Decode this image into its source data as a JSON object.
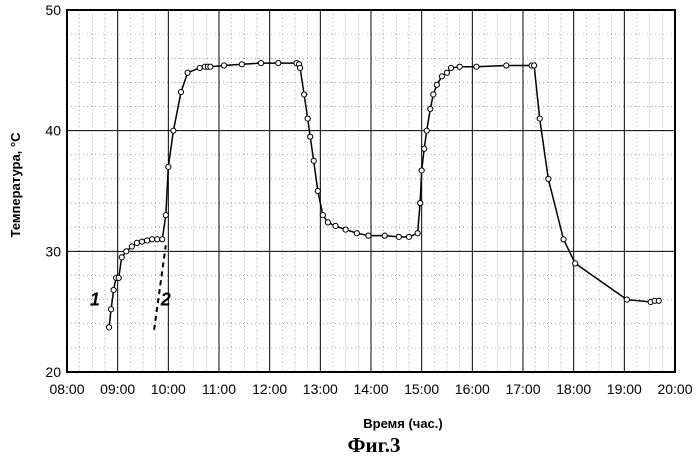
{
  "chart_data": {
    "type": "scatter",
    "title": "",
    "caption": "Фиг.3",
    "xlabel": "Время (час.)",
    "ylabel": "Температура, °С",
    "xlim": [
      8.0,
      20.0
    ],
    "ylim": [
      20,
      50
    ],
    "x_ticks": [
      "08:00",
      "09:00",
      "10:00",
      "11:00",
      "12:00",
      "13:00",
      "14:00",
      "15:00",
      "16:00",
      "17:00",
      "18:00",
      "19:00",
      "20:00"
    ],
    "y_ticks": [
      "20",
      "30",
      "40",
      "50"
    ],
    "grid": true,
    "annotations": [
      {
        "text": "1",
        "x": 8.55,
        "y": 25.5
      },
      {
        "text": "2",
        "x": 9.95,
        "y": 25.5
      }
    ],
    "series": [
      {
        "name": "",
        "style": "line-markers",
        "x": [
          8.83,
          8.87,
          8.92,
          8.97,
          9.02,
          9.08,
          9.17,
          9.28,
          9.38,
          9.48,
          9.58,
          9.68,
          9.78,
          9.88,
          9.95,
          10.0,
          10.1,
          10.25,
          10.38,
          10.62,
          10.72,
          10.78,
          10.83,
          11.1,
          11.45,
          11.83,
          12.17,
          12.53,
          12.58,
          12.6,
          12.68,
          12.75,
          12.8,
          12.87,
          12.95,
          13.05,
          13.15,
          13.3,
          13.5,
          13.72,
          13.95,
          14.27,
          14.55,
          14.75,
          14.92,
          14.97,
          15.0,
          15.05,
          15.1,
          15.17,
          15.23,
          15.3,
          15.4,
          15.5,
          15.58,
          15.75,
          16.08,
          16.67,
          17.17,
          17.22,
          17.33,
          17.5,
          17.8,
          18.03,
          19.05,
          19.52,
          19.6,
          19.68
        ],
        "y": [
          23.7,
          25.2,
          26.8,
          27.8,
          27.8,
          29.5,
          30.0,
          30.4,
          30.7,
          30.8,
          30.9,
          31.0,
          31.0,
          31.0,
          33.0,
          37.0,
          40.0,
          43.2,
          44.8,
          45.2,
          45.3,
          45.3,
          45.3,
          45.4,
          45.5,
          45.6,
          45.6,
          45.6,
          45.5,
          45.2,
          43.0,
          41.0,
          39.5,
          37.5,
          35.0,
          33.0,
          32.4,
          32.1,
          31.8,
          31.5,
          31.3,
          31.3,
          31.2,
          31.2,
          31.5,
          34.0,
          36.7,
          38.5,
          40.0,
          41.8,
          43.0,
          43.8,
          44.5,
          44.8,
          45.2,
          45.3,
          45.3,
          45.4,
          45.4,
          45.4,
          41.0,
          36.0,
          31.0,
          29.0,
          26.0,
          25.8,
          25.9,
          25.9
        ]
      },
      {
        "name": "",
        "style": "dashed",
        "x": [
          9.72,
          9.95
        ],
        "y": [
          23.5,
          30.5
        ]
      }
    ]
  }
}
